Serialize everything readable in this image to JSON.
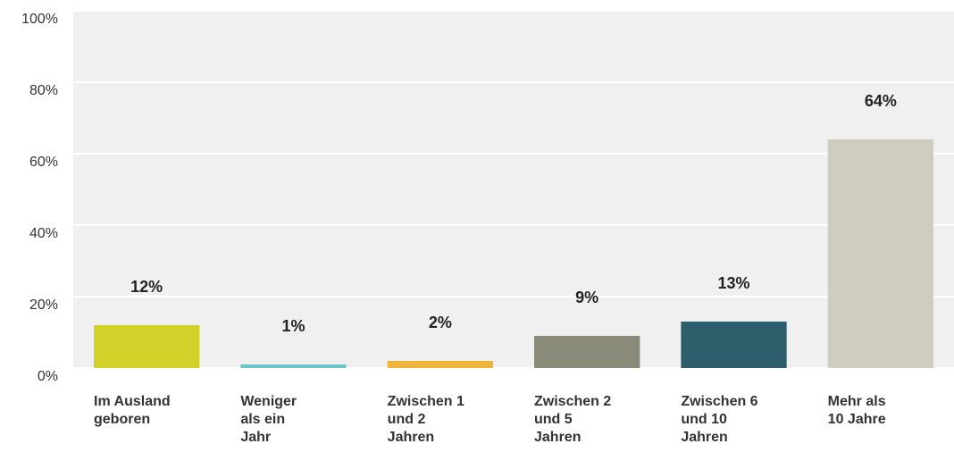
{
  "chart_data": {
    "type": "bar",
    "categories": [
      [
        "Im Ausland",
        "geboren"
      ],
      [
        "Weniger",
        "als ein",
        "Jahr"
      ],
      [
        "Zwischen 1",
        "und 2",
        "Jahren"
      ],
      [
        "Zwischen 2",
        "und 5",
        "Jahren"
      ],
      [
        "Zwischen 6",
        "und 10",
        "Jahren"
      ],
      [
        "Mehr als",
        "10 Jahre"
      ]
    ],
    "values": [
      12,
      1,
      2,
      9,
      13,
      64
    ],
    "value_labels": [
      "12%",
      "1%",
      "2%",
      "9%",
      "13%",
      "64%"
    ],
    "colors": [
      "#d2d12a",
      "#6cc6c8",
      "#efb43a",
      "#898a77",
      "#2d5e6c",
      "#cfcdbf"
    ],
    "ylim": [
      0,
      100
    ],
    "yticks": [
      {
        "value": 0,
        "label": "0%"
      },
      {
        "value": 20,
        "label": "20%"
      },
      {
        "value": 40,
        "label": "40%"
      },
      {
        "value": 60,
        "label": "60%"
      },
      {
        "value": 80,
        "label": "80%"
      },
      {
        "value": 100,
        "label": "100%"
      }
    ],
    "grid": true
  }
}
